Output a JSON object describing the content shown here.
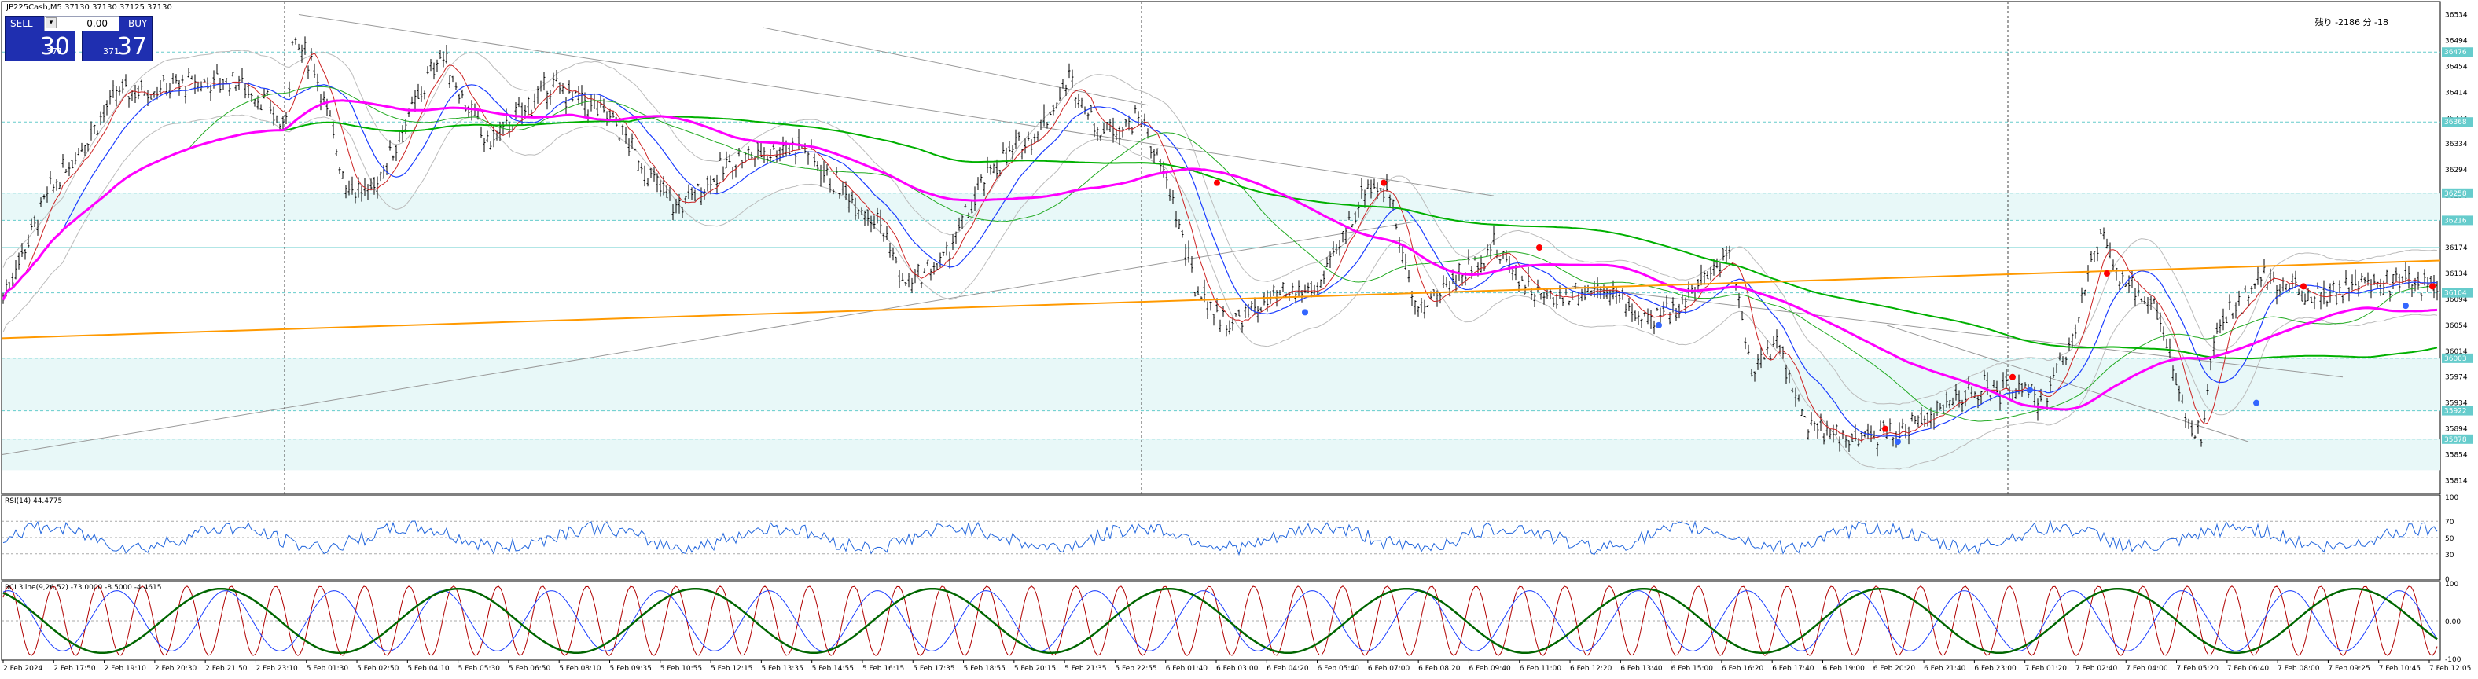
{
  "chart_header": {
    "text": "JP225Cash,M5  37130 37130 37125 37130"
  },
  "trade_panel": {
    "sell_label": "SELL",
    "buy_label": "BUY",
    "lot_value": "0.00",
    "sell_price_small": "371",
    "sell_price_big": "30",
    "buy_price_small": "371",
    "buy_price_big": "37"
  },
  "countdown": {
    "text": "残り -2186 分 -18"
  },
  "colors": {
    "chart_bg": "#ffffff",
    "candle": "#000000",
    "ma_magenta": "#ff00ff",
    "ma_green": "#00b000",
    "ma_orange": "#ff9900",
    "ma_blue": "#1a3cff",
    "zone_fill": "#e8f8f8",
    "rsi_line": "#2266dd",
    "rci_short": "#b00000",
    "rci_mid": "#1a3cff",
    "rci_long": "#006600",
    "panel_blue": "#1f2fb0"
  },
  "price_axis": {
    "ticks": [
      "36534",
      "36494",
      "36454",
      "36414",
      "36374",
      "36334",
      "36294",
      "36254",
      "36214",
      "36174",
      "36134",
      "36094",
      "36054",
      "36014",
      "35974",
      "35934",
      "35894",
      "35854",
      "35814"
    ],
    "highlight_labels": [
      "36476",
      "36368",
      "36258",
      "36216",
      "36104",
      "36003",
      "35922",
      "35878"
    ]
  },
  "time_axis": {
    "labels": [
      "2 Feb 2024",
      "2 Feb 17:50",
      "2 Feb 19:10",
      "2 Feb 20:30",
      "2 Feb 21:50",
      "2 Feb 23:10",
      "5 Feb 01:30",
      "5 Feb 02:50",
      "5 Feb 04:10",
      "5 Feb 05:30",
      "5 Feb 06:50",
      "5 Feb 08:10",
      "5 Feb 09:35",
      "5 Feb 10:55",
      "5 Feb 12:15",
      "5 Feb 13:35",
      "5 Feb 14:55",
      "5 Feb 16:15",
      "5 Feb 17:35",
      "5 Feb 18:55",
      "5 Feb 20:15",
      "5 Feb 21:35",
      "5 Feb 22:55",
      "6 Feb 01:40",
      "6 Feb 03:00",
      "6 Feb 04:20",
      "6 Feb 05:40",
      "6 Feb 07:00",
      "6 Feb 08:20",
      "6 Feb 09:40",
      "6 Feb 11:00",
      "6 Feb 12:20",
      "6 Feb 13:40",
      "6 Feb 15:00",
      "6 Feb 16:20",
      "6 Feb 17:40",
      "6 Feb 19:00",
      "6 Feb 20:20",
      "6 Feb 21:40",
      "6 Feb 23:00",
      "7 Feb 01:20",
      "7 Feb 02:40",
      "7 Feb 04:00",
      "7 Feb 05:20",
      "7 Feb 06:40",
      "7 Feb 08:00",
      "7 Feb 09:25",
      "7 Feb 10:45",
      "7 Feb 12:05"
    ]
  },
  "rsi_panel": {
    "label": "RSI(14) 44.4775",
    "ticks": [
      "100",
      "70",
      "50",
      "30",
      "0"
    ]
  },
  "rci_panel": {
    "label": "RCI 3line(9,26,52) -73.0000 -8.5000 -4.4615",
    "ticks": [
      "100",
      "0.00",
      "-100"
    ]
  }
}
